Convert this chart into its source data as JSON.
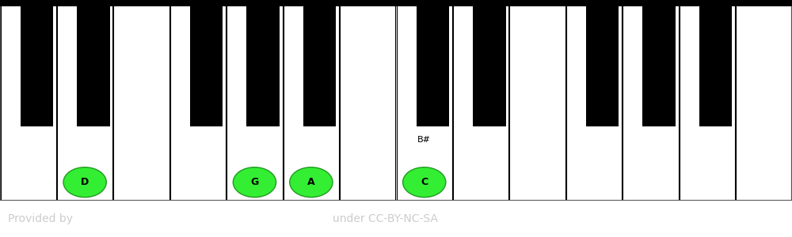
{
  "fig_width": 10.0,
  "fig_height": 3.0,
  "dpi": 100,
  "bg_color": "#ffffff",
  "footer_bg": "#000000",
  "footer_text_left": "Provided by",
  "footer_text_center": "under CC-BY-NC-SA",
  "footer_text_color": "#cccccc",
  "footer_fontsize": 10,
  "white_key_color": "#ffffff",
  "black_key_color": "#000000",
  "highlight_color": "#33ee33",
  "highlight_text_color": "#000000",
  "border_color": "#000000",
  "note_label_color": "#000000",
  "white_keys": [
    "C",
    "D",
    "E",
    "F",
    "G",
    "A",
    "B",
    "C",
    "D",
    "E",
    "F",
    "G",
    "A",
    "B"
  ],
  "num_white_keys": 14,
  "highlighted_notes": [
    "D",
    "G",
    "A",
    "C"
  ],
  "highlight_indices": [
    1,
    4,
    5,
    7
  ],
  "enharmonic_labels": {
    "7": "B#"
  },
  "note_fontsize": 9,
  "enharmonic_fontsize": 8,
  "black_key_positions_x": [
    0.65,
    1.65,
    3.65,
    4.65,
    5.65,
    7.65,
    8.65,
    10.65,
    11.65,
    12.65
  ],
  "outer_border_color": "#555555"
}
